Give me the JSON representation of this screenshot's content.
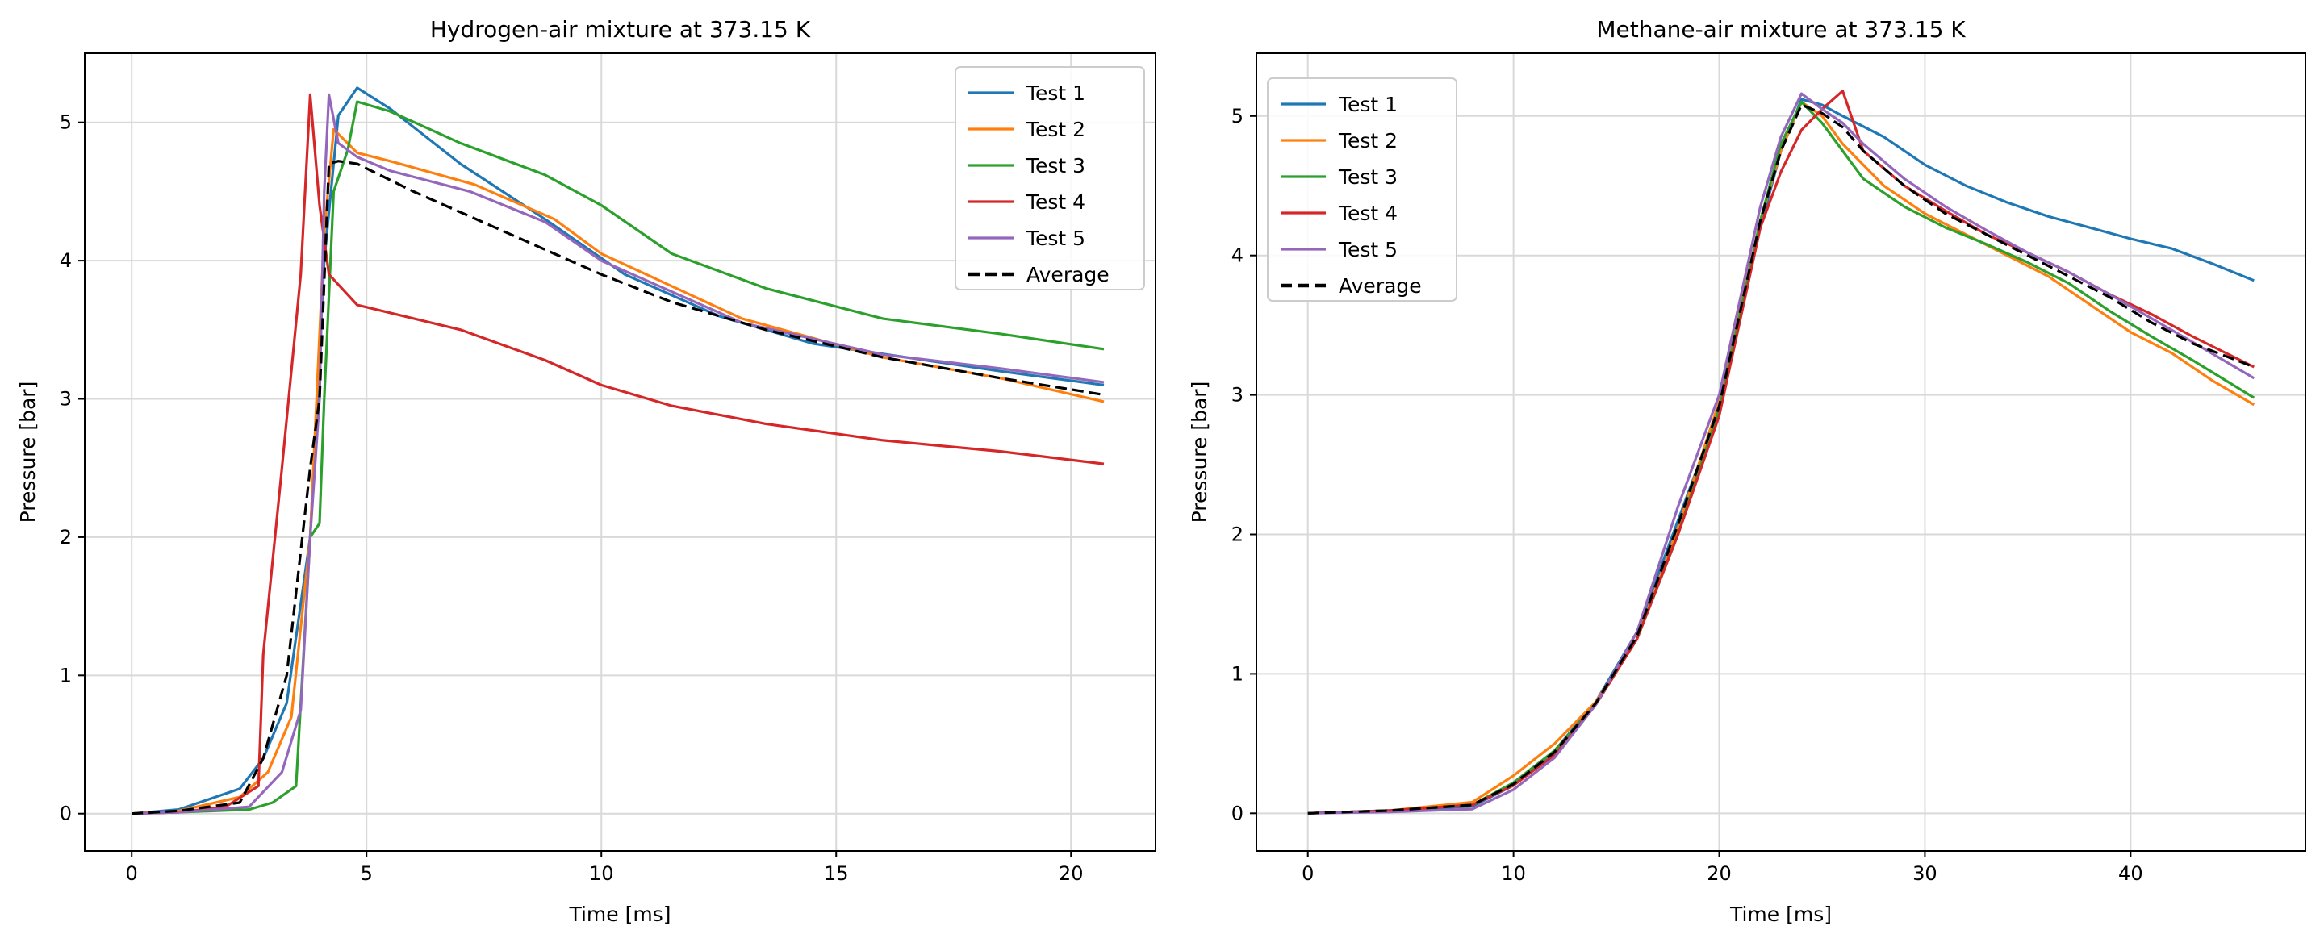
{
  "chart_data": [
    {
      "type": "line",
      "title": "Hydrogen-air mixture at 373.15 K",
      "xlabel": "Time [ms]",
      "ylabel": "Pressure [bar]",
      "xlim": [
        -1.0,
        21.8
      ],
      "ylim": [
        -0.27,
        5.5
      ],
      "xticks": [
        0,
        5,
        10,
        15,
        20
      ],
      "yticks": [
        0,
        1,
        2,
        3,
        4,
        5
      ],
      "grid": true,
      "legend_position": "top-right",
      "series": [
        {
          "name": "Test 1",
          "color": "#1f77b4",
          "dashed": false,
          "x": [
            0,
            1.0,
            2.3,
            2.8,
            3.3,
            3.8,
            4.1,
            4.4,
            4.8,
            5.5,
            7.0,
            8.8,
            10.5,
            12.5,
            14.5,
            16.5,
            18.5,
            20.7
          ],
          "y": [
            0,
            0.03,
            0.18,
            0.4,
            0.8,
            2.0,
            4.0,
            5.05,
            5.25,
            5.1,
            4.7,
            4.3,
            3.9,
            3.6,
            3.4,
            3.3,
            3.2,
            3.1
          ]
        },
        {
          "name": "Test 2",
          "color": "#ff7f0e",
          "dashed": false,
          "x": [
            0,
            1.0,
            2.3,
            2.9,
            3.4,
            3.8,
            4.1,
            4.3,
            4.8,
            5.5,
            7.3,
            9.0,
            10.0,
            13.0,
            16.0,
            18.5,
            20.7
          ],
          "y": [
            0,
            0.02,
            0.12,
            0.3,
            0.7,
            2.0,
            4.2,
            4.95,
            4.78,
            4.72,
            4.55,
            4.3,
            4.05,
            3.58,
            3.3,
            3.15,
            2.98
          ]
        },
        {
          "name": "Test 3",
          "color": "#2ca02c",
          "dashed": false,
          "x": [
            0,
            1.0,
            2.5,
            3.0,
            3.5,
            3.8,
            4.0,
            4.1,
            4.3,
            4.6,
            4.8,
            5.5,
            7.0,
            8.8,
            10.0,
            11.5,
            13.5,
            16.0,
            18.5,
            20.7
          ],
          "y": [
            0,
            0.01,
            0.03,
            0.08,
            0.2,
            2.0,
            2.1,
            3.0,
            4.5,
            4.8,
            5.15,
            5.08,
            4.85,
            4.62,
            4.4,
            4.05,
            3.8,
            3.58,
            3.47,
            3.36
          ]
        },
        {
          "name": "Test 4",
          "color": "#d62728",
          "dashed": false,
          "x": [
            0,
            1.0,
            2.0,
            2.7,
            2.8,
            3.2,
            3.6,
            3.8,
            4.0,
            4.2,
            4.8,
            7.0,
            8.8,
            10.0,
            11.5,
            13.5,
            16.0,
            18.5,
            20.7
          ],
          "y": [
            0,
            0.01,
            0.05,
            0.2,
            1.15,
            2.5,
            3.9,
            5.2,
            4.4,
            3.9,
            3.68,
            3.5,
            3.28,
            3.1,
            2.95,
            2.82,
            2.7,
            2.62,
            2.53
          ]
        },
        {
          "name": "Test 5",
          "color": "#9467bd",
          "dashed": false,
          "x": [
            0,
            1.0,
            2.5,
            3.2,
            3.6,
            3.8,
            4.0,
            4.1,
            4.2,
            4.4,
            4.8,
            5.5,
            7.2,
            8.8,
            10.0,
            13.0,
            16.0,
            18.5,
            20.7
          ],
          "y": [
            0,
            0.01,
            0.05,
            0.3,
            0.75,
            2.0,
            3.0,
            4.5,
            5.2,
            4.85,
            4.75,
            4.65,
            4.5,
            4.28,
            4.0,
            3.55,
            3.32,
            3.22,
            3.12
          ]
        },
        {
          "name": "Average",
          "color": "#000000",
          "dashed": true,
          "x": [
            0,
            1.0,
            2.3,
            2.8,
            3.3,
            3.8,
            4.0,
            4.2,
            4.4,
            4.8,
            6.0,
            8.0,
            10.0,
            11.5,
            13.5,
            16.0,
            18.5,
            20.7
          ],
          "y": [
            0,
            0.02,
            0.08,
            0.4,
            1.0,
            2.5,
            3.0,
            4.7,
            4.72,
            4.7,
            4.5,
            4.2,
            3.9,
            3.7,
            3.5,
            3.3,
            3.15,
            3.03
          ]
        }
      ]
    },
    {
      "type": "line",
      "title": "Methane-air mixture at 373.15 K",
      "xlabel": "Time [ms]",
      "ylabel": "Pressure [bar]",
      "xlim": [
        -2.5,
        48.5
      ],
      "ylim": [
        -0.27,
        5.45
      ],
      "xticks": [
        0,
        10,
        20,
        30,
        40
      ],
      "yticks": [
        0,
        1,
        2,
        3,
        4,
        5
      ],
      "grid": true,
      "legend_position": "top-left",
      "series": [
        {
          "name": "Test 1",
          "color": "#1f77b4",
          "dashed": false,
          "x": [
            0,
            4,
            8,
            10,
            12,
            14,
            16,
            18,
            20,
            22,
            23,
            24,
            25,
            26,
            28,
            30,
            32,
            34,
            36,
            38,
            40,
            42,
            44,
            46
          ],
          "y": [
            0,
            0.02,
            0.05,
            0.2,
            0.45,
            0.8,
            1.3,
            2.1,
            2.9,
            4.2,
            4.75,
            5.12,
            5.08,
            5.0,
            4.85,
            4.65,
            4.5,
            4.38,
            4.28,
            4.2,
            4.12,
            4.05,
            3.94,
            3.82
          ]
        },
        {
          "name": "Test 2",
          "color": "#ff7f0e",
          "dashed": false,
          "x": [
            0,
            4,
            8,
            10,
            12,
            14,
            16,
            18,
            20,
            22,
            23,
            24,
            25,
            26,
            28,
            30,
            32,
            34,
            36,
            38,
            40,
            42,
            44,
            46
          ],
          "y": [
            0,
            0.02,
            0.08,
            0.27,
            0.5,
            0.8,
            1.25,
            2.05,
            2.95,
            4.25,
            4.75,
            5.1,
            5.0,
            4.8,
            4.5,
            4.3,
            4.15,
            4.0,
            3.85,
            3.65,
            3.45,
            3.3,
            3.1,
            2.93
          ]
        },
        {
          "name": "Test 3",
          "color": "#2ca02c",
          "dashed": false,
          "x": [
            0,
            4,
            8,
            10,
            12,
            14,
            16,
            18,
            20,
            22,
            23,
            24,
            25,
            26,
            27,
            29,
            31,
            33,
            35,
            37,
            39,
            41,
            43,
            46
          ],
          "y": [
            0,
            0.02,
            0.06,
            0.22,
            0.45,
            0.78,
            1.25,
            2.0,
            2.9,
            4.25,
            4.8,
            5.1,
            4.95,
            4.75,
            4.55,
            4.35,
            4.2,
            4.08,
            3.95,
            3.8,
            3.6,
            3.42,
            3.25,
            2.98
          ]
        },
        {
          "name": "Test 4",
          "color": "#d62728",
          "dashed": false,
          "x": [
            0,
            4,
            8,
            10,
            12,
            14,
            16,
            18,
            20,
            22,
            23,
            24,
            25,
            26,
            27,
            29,
            31,
            33,
            35,
            37,
            39,
            41,
            43,
            46
          ],
          "y": [
            0,
            0.02,
            0.06,
            0.2,
            0.42,
            0.78,
            1.25,
            2.0,
            2.85,
            4.2,
            4.6,
            4.9,
            5.05,
            5.18,
            4.75,
            4.5,
            4.32,
            4.15,
            4.02,
            3.88,
            3.72,
            3.58,
            3.42,
            3.2
          ]
        },
        {
          "name": "Test 5",
          "color": "#9467bd",
          "dashed": false,
          "x": [
            0,
            4,
            8,
            10,
            12,
            14,
            16,
            18,
            20,
            22,
            23,
            24,
            25,
            26,
            27,
            29,
            31,
            33,
            35,
            37,
            39,
            41,
            43,
            46
          ],
          "y": [
            0,
            0.01,
            0.03,
            0.17,
            0.4,
            0.78,
            1.3,
            2.2,
            3.0,
            4.35,
            4.85,
            5.16,
            5.05,
            4.95,
            4.8,
            4.55,
            4.35,
            4.18,
            4.02,
            3.88,
            3.72,
            3.55,
            3.38,
            3.12
          ]
        },
        {
          "name": "Average",
          "color": "#000000",
          "dashed": true,
          "x": [
            0,
            4,
            8,
            10,
            12,
            14,
            16,
            18,
            20,
            22,
            23,
            24,
            25,
            26,
            27,
            29,
            31,
            33,
            35,
            37,
            39,
            41,
            43,
            46
          ],
          "y": [
            0,
            0.02,
            0.06,
            0.21,
            0.44,
            0.79,
            1.27,
            2.07,
            2.92,
            4.25,
            4.75,
            5.08,
            5.02,
            4.92,
            4.75,
            4.5,
            4.3,
            4.15,
            4.0,
            3.85,
            3.7,
            3.52,
            3.37,
            3.2
          ]
        }
      ]
    }
  ]
}
